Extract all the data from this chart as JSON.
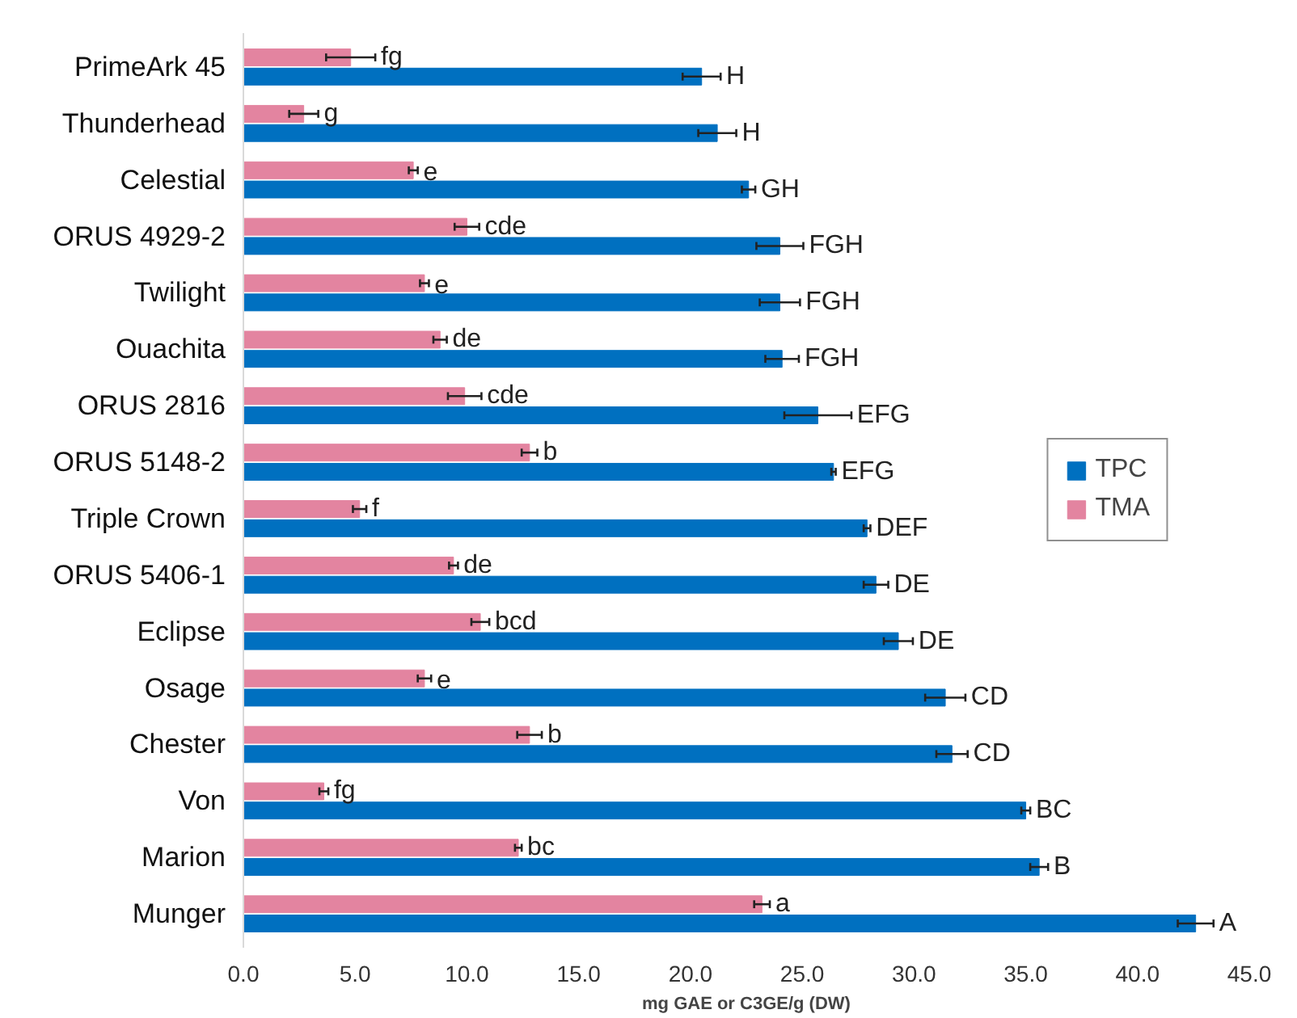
{
  "chart_data": {
    "type": "bar",
    "orientation": "horizontal",
    "xlabel": "mg GAE or C3GE/g (DW)",
    "categories": [
      "PrimeArk 45",
      "Thunderhead",
      "Celestial",
      "ORUS 4929-2",
      "Twilight",
      "Ouachita",
      "ORUS 2816",
      "ORUS 5148-2",
      "Triple Crown",
      "ORUS 5406-1",
      "Eclipse",
      "Osage",
      "Chester",
      "Von",
      "Marion",
      "Munger"
    ],
    "series": [
      {
        "name": "TPC",
        "color": "#0070c0",
        "values": [
          20.5,
          21.2,
          22.6,
          24.0,
          24.0,
          24.1,
          25.7,
          26.4,
          27.9,
          28.3,
          29.3,
          31.4,
          31.7,
          35.0,
          35.6,
          42.6
        ],
        "errors": [
          0.85,
          0.85,
          0.3,
          1.05,
          0.9,
          0.75,
          1.5,
          0.1,
          0.15,
          0.55,
          0.65,
          0.9,
          0.7,
          0.2,
          0.4,
          0.8
        ],
        "value_labels": [
          "H",
          "H",
          "GH",
          "FGH",
          "FGH",
          "FGH",
          "EFG",
          "EFG",
          "DEF",
          "DE",
          "DE",
          "CD",
          "CD",
          "BC",
          "B",
          "A"
        ]
      },
      {
        "name": "TMA",
        "color": "#e384a0",
        "values": [
          4.8,
          2.7,
          7.6,
          10.0,
          8.1,
          8.8,
          9.9,
          12.8,
          5.2,
          9.4,
          10.6,
          8.1,
          12.8,
          3.6,
          12.3,
          23.2
        ],
        "errors": [
          1.1,
          0.65,
          0.2,
          0.55,
          0.2,
          0.3,
          0.75,
          0.35,
          0.3,
          0.2,
          0.4,
          0.3,
          0.55,
          0.2,
          0.15,
          0.35
        ],
        "value_labels": [
          "fg",
          "g",
          "e",
          "cde",
          "e",
          "de",
          "cde",
          "b",
          "f",
          "de",
          "bcd",
          "e",
          "b",
          "fg",
          "bc",
          "a"
        ]
      }
    ],
    "xlim": [
      0,
      45
    ],
    "xticks": [
      {
        "value": 0,
        "label": "0.0"
      },
      {
        "value": 5,
        "label": "5.0"
      },
      {
        "value": 10,
        "label": "10.0"
      },
      {
        "value": 15,
        "label": "15.0"
      },
      {
        "value": 20,
        "label": "20.0"
      },
      {
        "value": 25,
        "label": "25.0"
      },
      {
        "value": 30,
        "label": "30.0"
      },
      {
        "value": 35,
        "label": "35.0"
      },
      {
        "value": 40,
        "label": "40.0"
      },
      {
        "value": 45,
        "label": "45.0"
      }
    ],
    "grid": false,
    "legend": "right"
  }
}
